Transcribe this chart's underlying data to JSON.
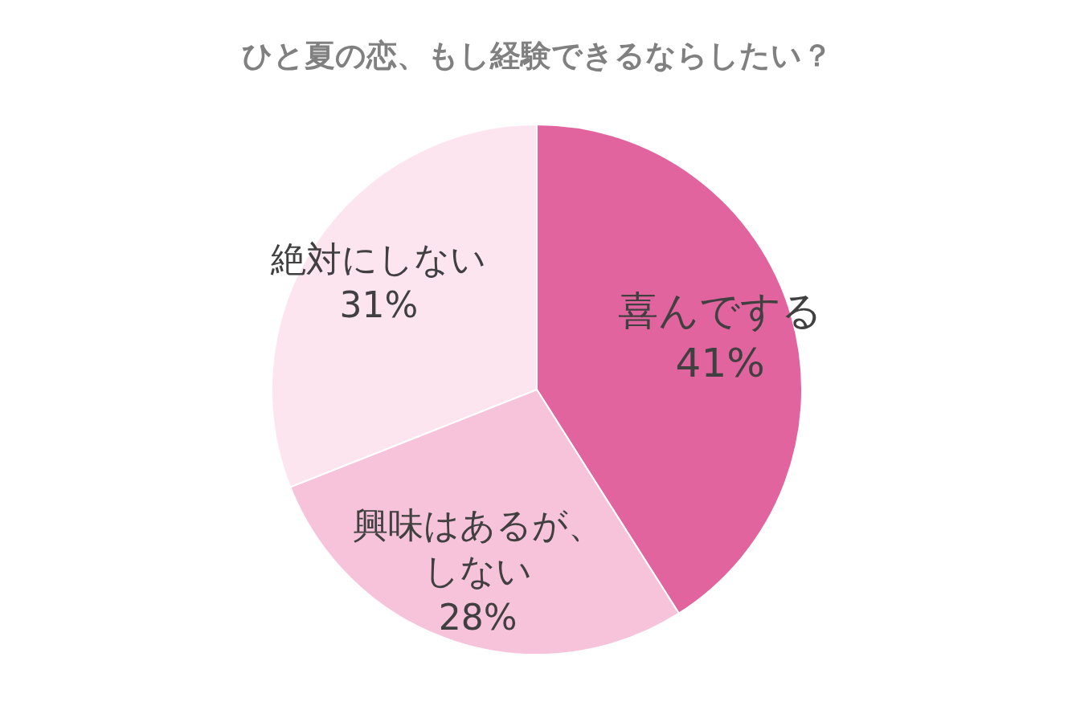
{
  "chart_data": {
    "type": "pie",
    "title": "ひと夏の恋、もし経験できるならしたい？",
    "categories": [
      "喜んでする",
      "興味はあるが、しない",
      "絶対にしない"
    ],
    "values": [
      41,
      28,
      31
    ],
    "value_labels": [
      "41%",
      "28%",
      "31%"
    ],
    "colors": [
      "#e2649f",
      "#f6c3da",
      "#fde5ef"
    ],
    "legend": false
  }
}
